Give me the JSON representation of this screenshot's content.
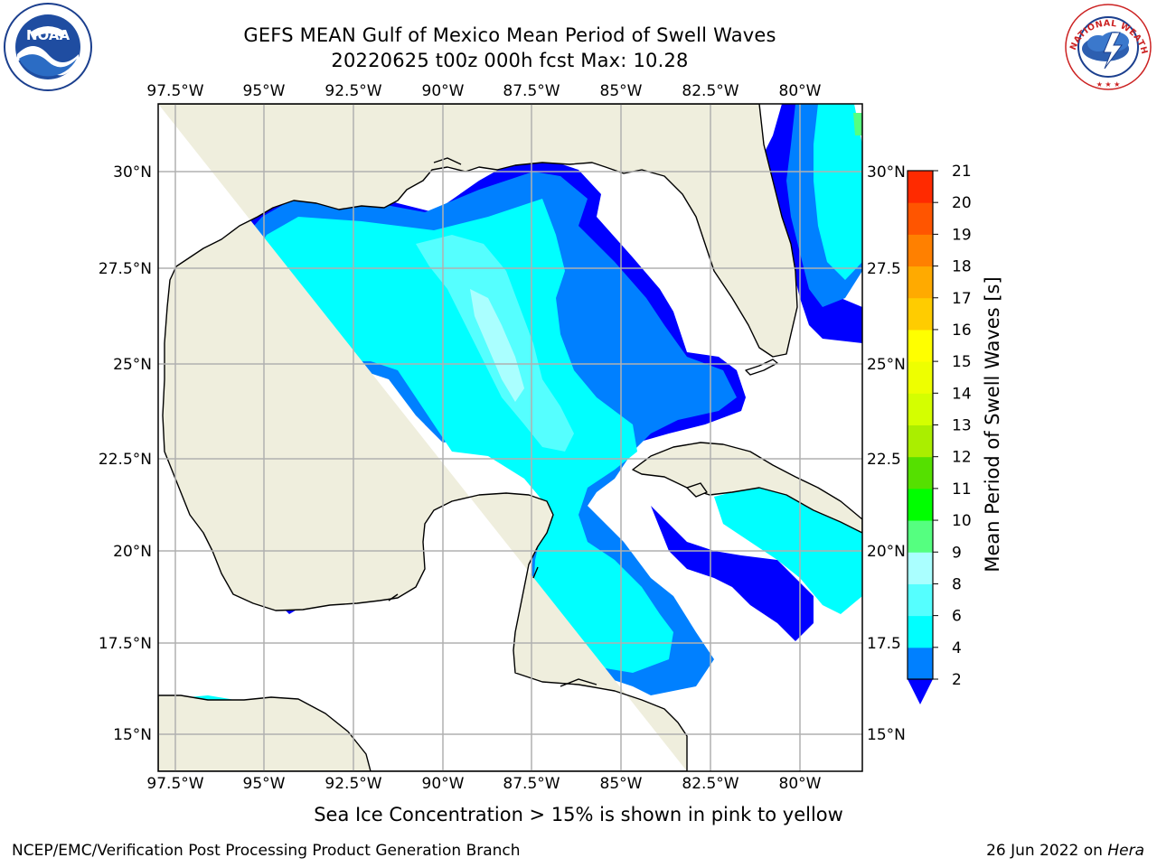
{
  "header": {
    "title_line1": "GEFS MEAN Gulf of Mexico Mean Period of Swell Waves",
    "title_line2": "20220625 t00z 000h fcst   Max: 10.28"
  },
  "logos": {
    "left": {
      "icon": "noaa-logo",
      "text": "NOAA"
    },
    "right": {
      "icon": "nws-logo",
      "text": "NATIONAL WEATHER SERVICE"
    }
  },
  "map": {
    "lon_ticks": [
      "97.5°W",
      "95°W",
      "92.5°W",
      "90°W",
      "87.5°W",
      "85°W",
      "82.5°W",
      "80°W"
    ],
    "lat_ticks_left": [
      "30°N",
      "27.5°N",
      "25°N",
      "22.5°N",
      "20°N",
      "17.5°N",
      "15°N"
    ],
    "lat_ticks_right": [
      "30°N",
      "27.5",
      "25°N",
      "22.5",
      "20°N",
      "17.5",
      "15°N"
    ],
    "colors": {
      "land": "#efeedd",
      "grid": "#b0b0b0",
      "ocean_none": "#ffffff"
    }
  },
  "colorbar": {
    "label": "Mean Period of Swell Waves [s]",
    "ticks": [
      "2",
      "4",
      "6",
      "8",
      "9",
      "10",
      "11",
      "12",
      "13",
      "14",
      "15",
      "16",
      "17",
      "18",
      "19",
      "20",
      "21"
    ],
    "colors": [
      "#0000ff",
      "#0080ff",
      "#00ffff",
      "#55ffff",
      "#aaffff",
      "#55ff80",
      "#00ff00",
      "#55e000",
      "#aaee00",
      "#d4ff00",
      "#eeff00",
      "#ffff00",
      "#ffcc00",
      "#ffaa00",
      "#ff8000",
      "#ff5500",
      "#ff2a00",
      "#ff0000"
    ]
  },
  "caption": "Sea Ice Concentration > 15% is shown in pink to yellow",
  "footer": {
    "left": "NCEP/EMC/Verification Post Processing Product Generation Branch",
    "right_prefix": "26 Jun 2022 on ",
    "right_host": "Hera"
  }
}
